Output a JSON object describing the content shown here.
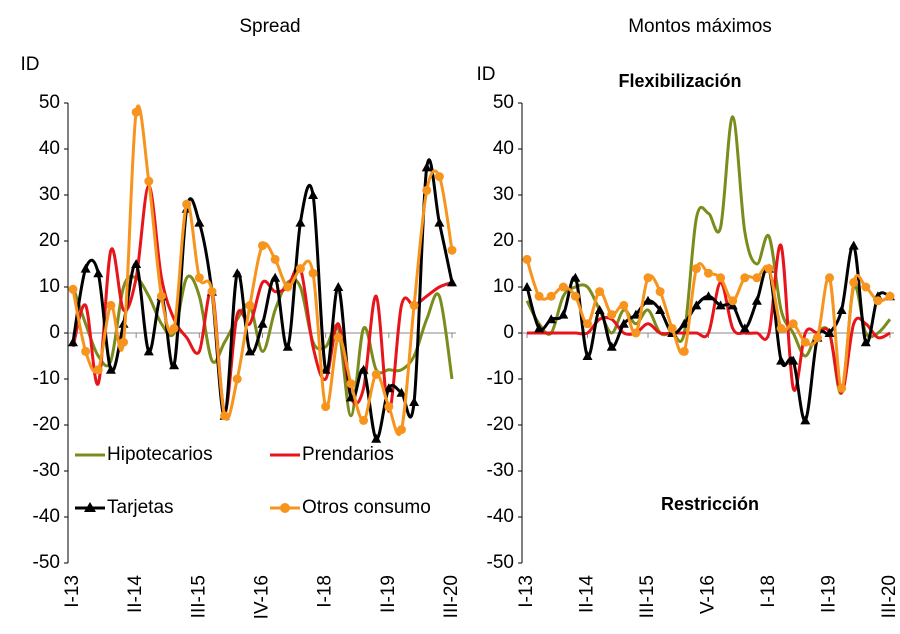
{
  "chart_data": [
    {
      "type": "line",
      "title": "Spread",
      "y_label": "ID",
      "legend": true,
      "categories": [
        "I-13",
        null,
        null,
        null,
        null,
        "II-14",
        null,
        null,
        null,
        null,
        "III-15",
        null,
        null,
        null,
        null,
        "IV-16",
        null,
        null,
        null,
        null,
        "I-18",
        null,
        null,
        null,
        null,
        "II-19",
        null,
        null,
        null,
        null,
        "III-20"
      ],
      "ylim": [
        -50,
        50
      ],
      "yticks": [
        -50,
        -40,
        -30,
        -20,
        -10,
        0,
        10,
        20,
        30,
        40,
        50
      ],
      "series": [
        {
          "name": "Hipotecarios",
          "color": "#7a8c1c",
          "values": [
            10,
            2,
            -5,
            -6,
            10,
            12,
            8,
            2,
            0,
            12,
            8,
            -6,
            -2,
            3,
            6,
            -4,
            5,
            11,
            10,
            -2,
            -3,
            1,
            -18,
            1,
            -8,
            -8,
            -8,
            -5,
            3,
            8,
            -10
          ]
        },
        {
          "name": "Prendarios",
          "color": "#e8141b",
          "values": [
            -3,
            6,
            -11,
            18,
            5,
            12,
            32,
            12,
            3,
            -1,
            -4,
            9,
            -17,
            4,
            2,
            11,
            9,
            10,
            14,
            -3,
            -10,
            2,
            -14,
            -12,
            8,
            -17,
            6,
            6,
            8,
            10,
            11
          ]
        },
        {
          "name": "Tarjetas",
          "color": "#000000",
          "marker": "triangle",
          "values": [
            -2,
            14,
            13,
            -8,
            2,
            15,
            -4,
            8,
            -7,
            27,
            24,
            9,
            -18,
            13,
            -4,
            2,
            12,
            -3,
            24,
            30,
            -8,
            10,
            -14,
            -8,
            -23,
            -12,
            -13,
            -15,
            36,
            24,
            11
          ]
        },
        {
          "name": "Otros consumo",
          "color": "#f7941d",
          "marker": "circle",
          "values": [
            9.5,
            -4,
            -8,
            6,
            -2,
            48,
            33,
            8,
            1,
            28,
            12,
            9,
            -18,
            -10,
            6,
            19,
            16,
            10,
            14,
            13,
            -16,
            -1,
            -11,
            -19,
            -9,
            -16,
            -21,
            6,
            31,
            34,
            18
          ]
        }
      ]
    },
    {
      "type": "line",
      "title": "Montos máximos",
      "y_label": "ID",
      "legend": false,
      "annotations": [
        "Flexibilización",
        "Restricción"
      ],
      "categories": [
        "I-13",
        null,
        null,
        null,
        null,
        "II-14",
        null,
        null,
        null,
        null,
        "III-15",
        null,
        null,
        null,
        null,
        "V-16",
        null,
        null,
        null,
        null,
        "I-18",
        null,
        null,
        null,
        null,
        "II-19",
        null,
        null,
        null,
        null,
        "III-20"
      ],
      "ylim": [
        -50,
        50
      ],
      "yticks": [
        -50,
        -40,
        -30,
        -20,
        -10,
        0,
        10,
        20,
        30,
        40,
        50
      ],
      "series": [
        {
          "name": "Hipotecarios",
          "color": "#7a8c1c",
          "values": [
            7,
            2,
            0,
            8,
            10,
            10,
            5,
            0,
            5,
            2,
            5,
            0,
            0,
            0,
            25,
            26,
            23,
            47,
            22,
            15,
            21,
            5,
            0,
            -5,
            0,
            0,
            -13,
            10,
            0,
            0,
            3
          ]
        },
        {
          "name": "Prendarios",
          "color": "#e8141b",
          "values": [
            0,
            0,
            0,
            0,
            0,
            0,
            3,
            3,
            0,
            0,
            2,
            0,
            0,
            0,
            0,
            0,
            11,
            1,
            0,
            0,
            0,
            19,
            -12,
            0,
            0,
            0,
            -13,
            2,
            2,
            -1,
            0
          ]
        },
        {
          "name": "Tarjetas",
          "color": "#000000",
          "marker": "triangle",
          "values": [
            10,
            1,
            3,
            4,
            12,
            -5,
            5,
            -3,
            2,
            4,
            7,
            5,
            0,
            2,
            6,
            8,
            6,
            6,
            1,
            7,
            14,
            -6,
            -6,
            -19,
            -1,
            0,
            5,
            19,
            -2,
            8,
            8
          ]
        },
        {
          "name": "Otros consumo",
          "color": "#f7941d",
          "marker": "circle",
          "values": [
            16,
            8,
            8,
            10,
            8,
            2,
            9,
            4,
            6,
            0,
            12,
            9,
            1,
            -4,
            14,
            13,
            12,
            7,
            12,
            12,
            14,
            1,
            2,
            -2,
            -1,
            12,
            -12,
            11,
            10,
            7,
            8
          ]
        }
      ]
    }
  ]
}
